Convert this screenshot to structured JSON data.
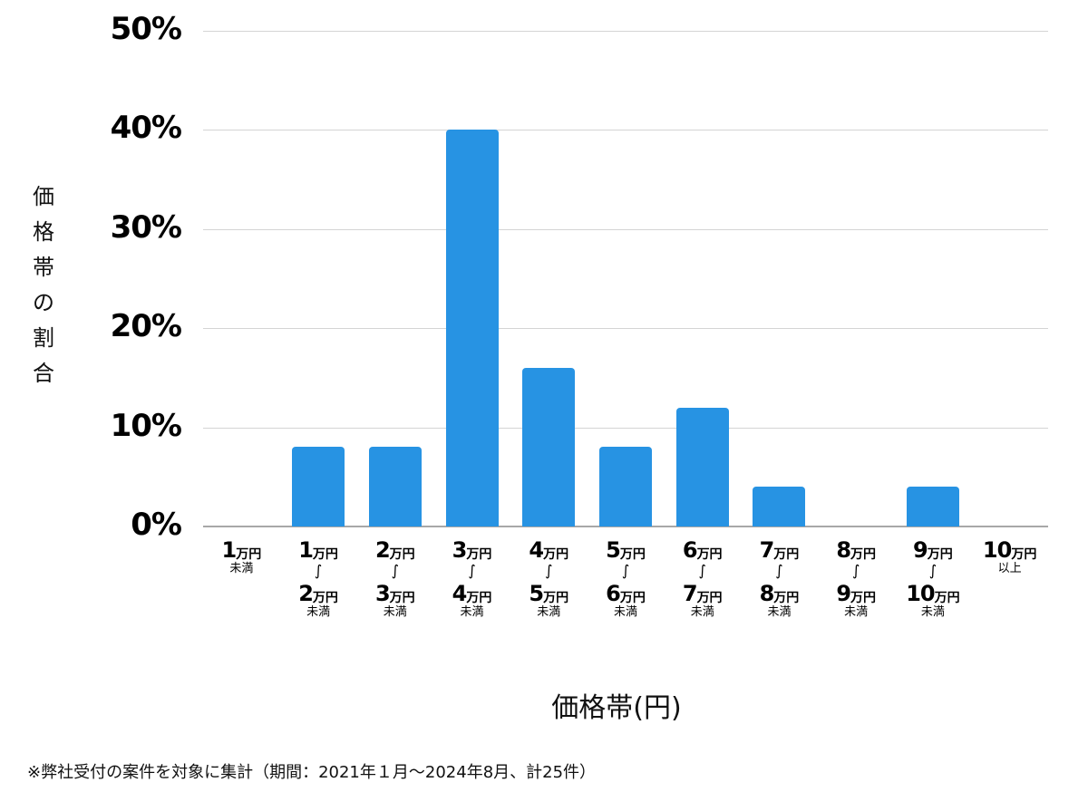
{
  "chart_data": {
    "type": "bar",
    "title": "",
    "xlabel": "価格帯(円)",
    "ylabel": "価格帯の割合",
    "ylim": [
      0,
      50
    ],
    "yticks": [
      "0%",
      "10%",
      "20%",
      "30%",
      "40%",
      "50%"
    ],
    "grid": true,
    "legend": null,
    "bar_color": "#2793e3",
    "categories": [
      "1万円未満",
      "1万円〜2万円未満",
      "2万円〜3万円未満",
      "3万円〜4万円未満",
      "4万円〜5万円未満",
      "5万円〜6万円未満",
      "6万円〜7万円未満",
      "7万円〜8万円未満",
      "8万円〜9万円未満",
      "9万円〜10万円未満",
      "10万円以上"
    ],
    "values": [
      0,
      8,
      8,
      40,
      16,
      8,
      12,
      4,
      0,
      4,
      0
    ],
    "unit": "%",
    "footnote": "※弊社受付の案件を対象に集計（期間：2021年１月〜2024年8月、計25件）"
  },
  "axis": {
    "ylabel_chars": [
      "価",
      "格",
      "帯",
      "の",
      "割",
      "合"
    ],
    "xlabel": "価格帯(円)"
  },
  "xcats": [
    {
      "from": "1",
      "to": null,
      "suffix": "未満"
    },
    {
      "from": "1",
      "to": "2",
      "suffix": "未満"
    },
    {
      "from": "2",
      "to": "3",
      "suffix": "未満"
    },
    {
      "from": "3",
      "to": "4",
      "suffix": "未満"
    },
    {
      "from": "4",
      "to": "5",
      "suffix": "未満"
    },
    {
      "from": "5",
      "to": "6",
      "suffix": "未満"
    },
    {
      "from": "6",
      "to": "7",
      "suffix": "未満"
    },
    {
      "from": "7",
      "to": "8",
      "suffix": "未満"
    },
    {
      "from": "8",
      "to": "9",
      "suffix": "未満"
    },
    {
      "from": "9",
      "to": "10",
      "suffix": "未満"
    },
    {
      "from": "10",
      "to": null,
      "suffix": "以上"
    }
  ],
  "labels": {
    "unit": "万円",
    "wave": "〜"
  },
  "footnote": "※弊社受付の案件を対象に集計（期間：2021年１月〜2024年8月、計25件）"
}
